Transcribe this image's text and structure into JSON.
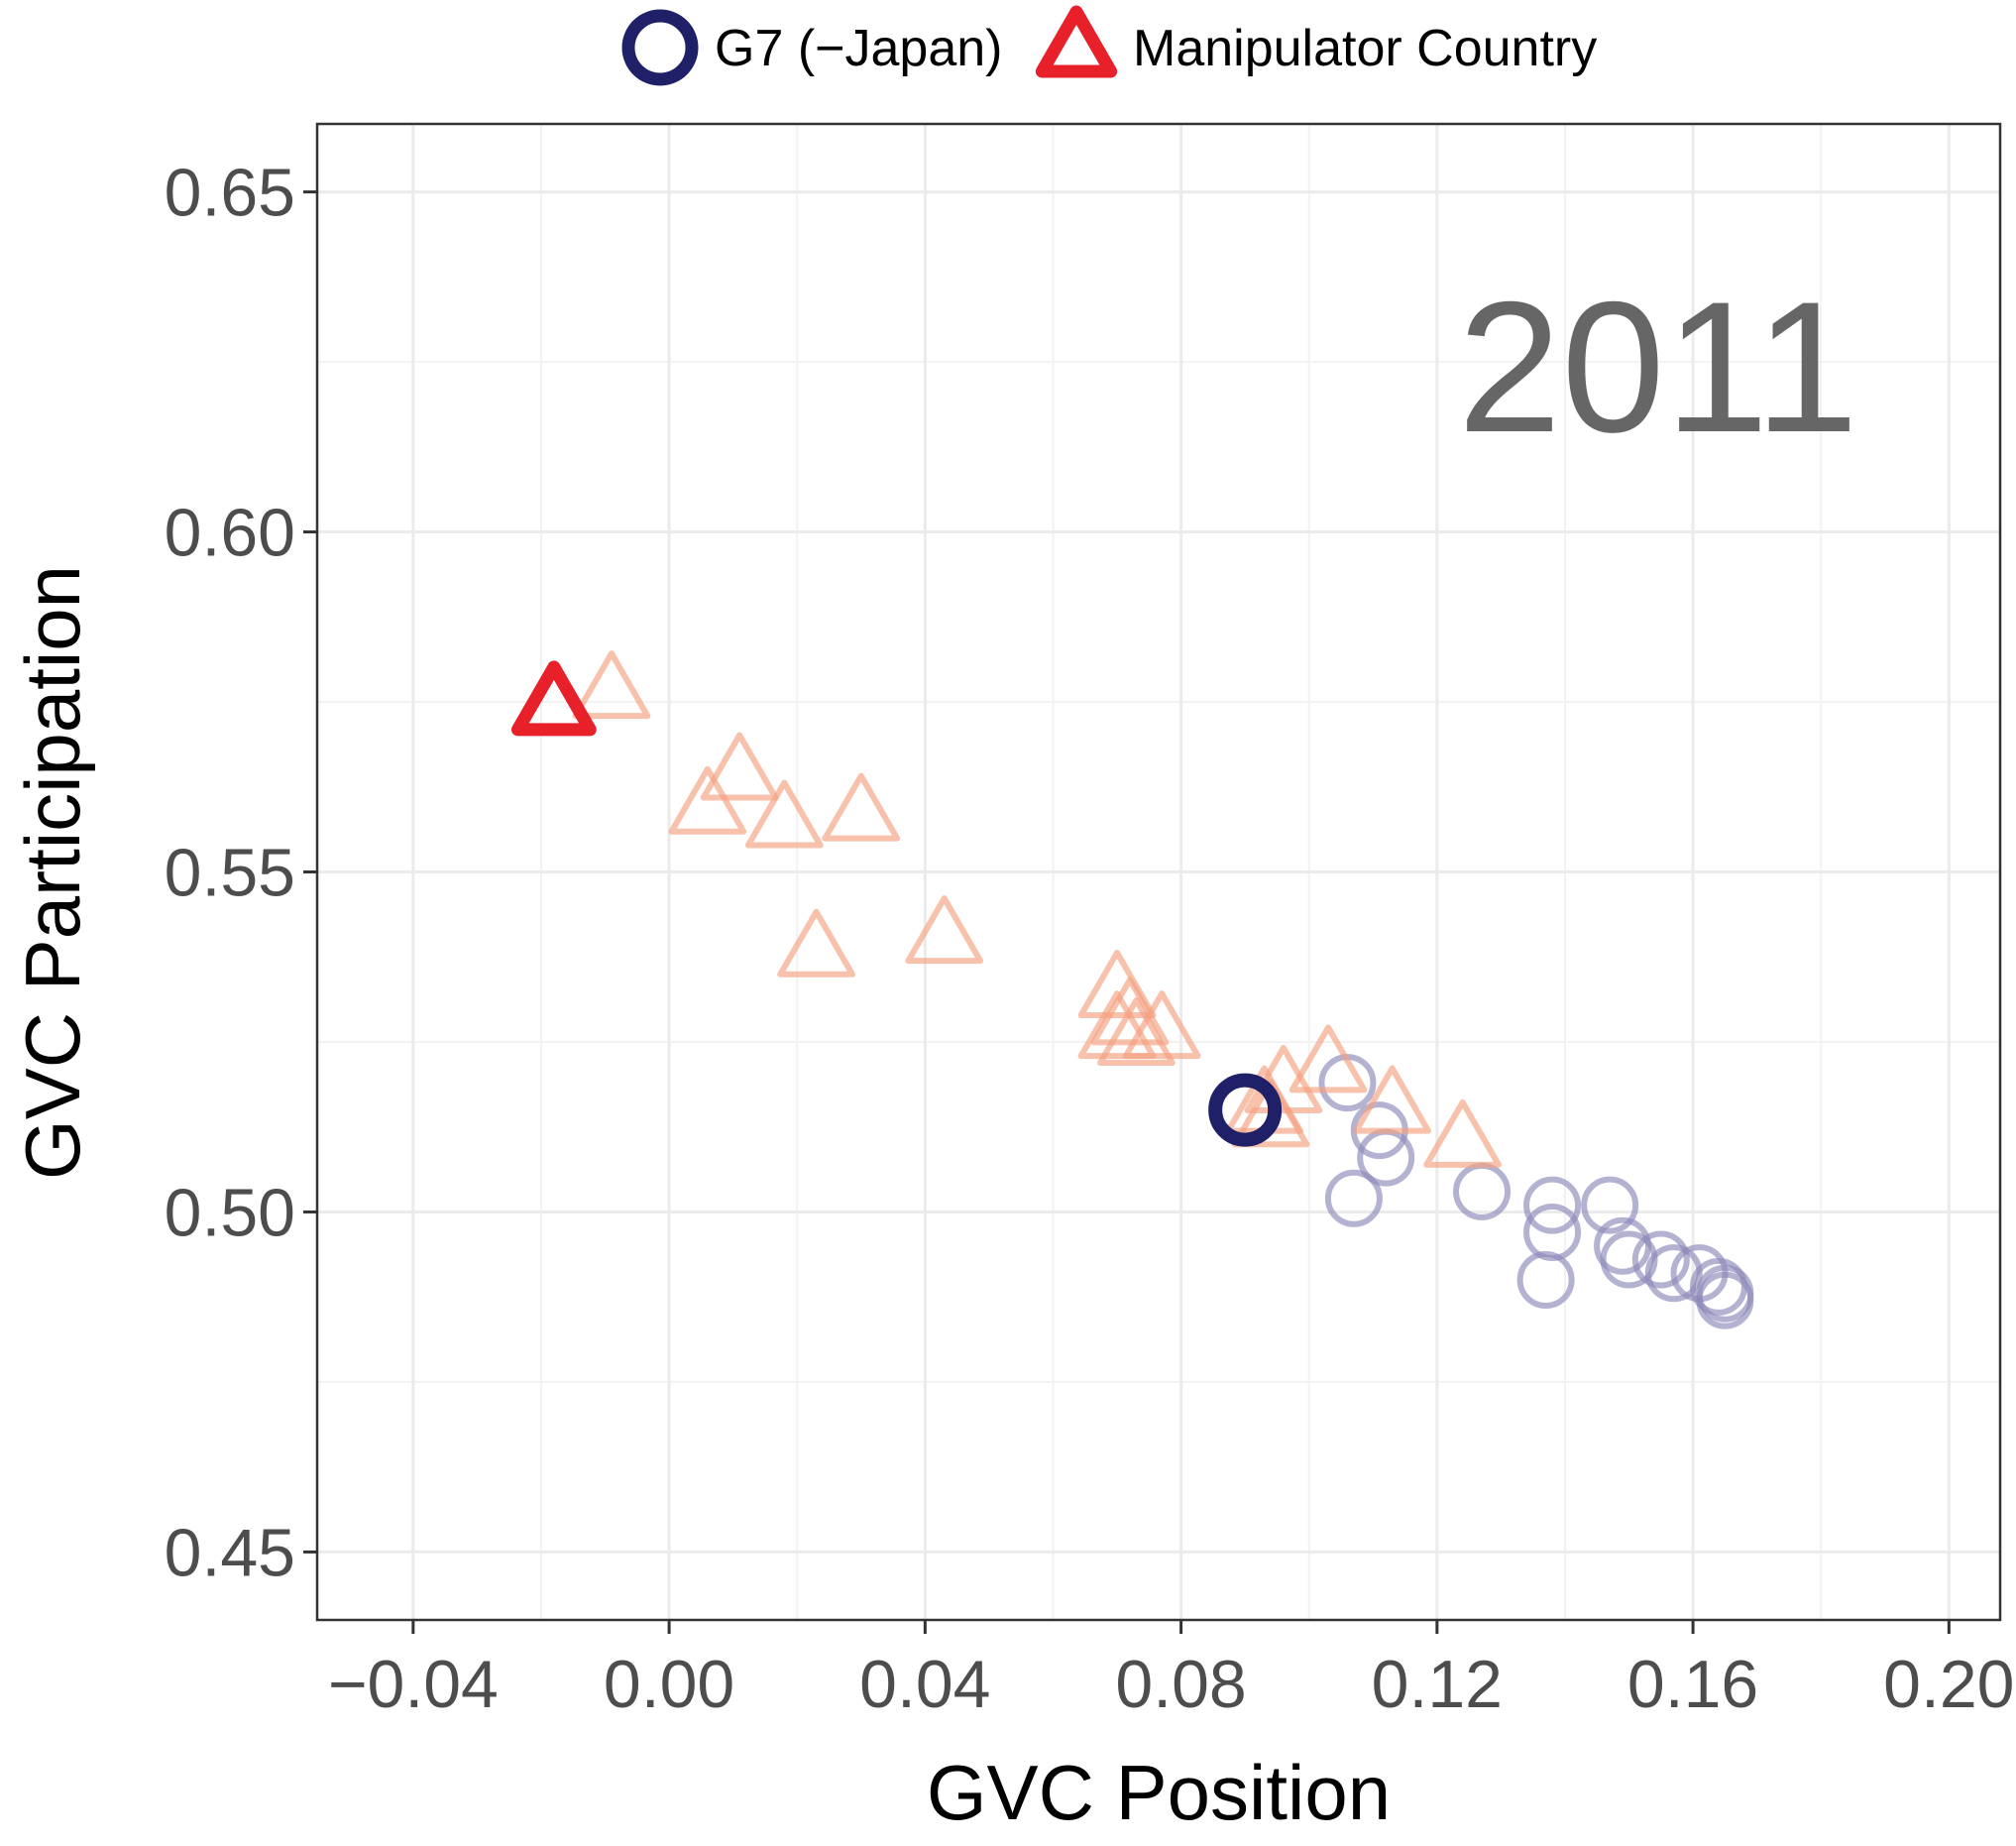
{
  "chart_data": {
    "type": "scatter",
    "xlabel": "GVC Position",
    "ylabel": "GVC Participation",
    "annotation": "2011",
    "xlim": [
      -0.055,
      0.208
    ],
    "ylim": [
      0.44,
      0.66
    ],
    "xticks": [
      -0.04,
      0.0,
      0.04,
      0.08,
      0.12,
      0.16,
      0.2
    ],
    "xtick_labels": [
      "−0.04",
      "0.00",
      "0.04",
      "0.08",
      "0.12",
      "0.16",
      "0.20"
    ],
    "yticks": [
      0.45,
      0.5,
      0.55,
      0.6,
      0.65
    ],
    "ytick_labels": [
      "0.45",
      "0.50",
      "0.55",
      "0.60",
      "0.65"
    ],
    "grid": true,
    "legend": {
      "position": "top",
      "entries": [
        {
          "label": "G7 (−Japan)",
          "shape": "circle",
          "color": "#1f2068"
        },
        {
          "label": "Manipulator Country",
          "shape": "triangle",
          "color": "#e8202a"
        }
      ]
    },
    "series": [
      {
        "name": "G7 (−Japan)",
        "shape": "circle",
        "color": "#1f2068",
        "faded_color": "#8c89b8",
        "highlight": {
          "x": 0.09,
          "y": 0.515
        },
        "points": [
          {
            "x": 0.106,
            "y": 0.519
          },
          {
            "x": 0.111,
            "y": 0.512
          },
          {
            "x": 0.112,
            "y": 0.508
          },
          {
            "x": 0.107,
            "y": 0.502
          },
          {
            "x": 0.127,
            "y": 0.503
          },
          {
            "x": 0.138,
            "y": 0.501
          },
          {
            "x": 0.138,
            "y": 0.497
          },
          {
            "x": 0.137,
            "y": 0.49
          },
          {
            "x": 0.147,
            "y": 0.501
          },
          {
            "x": 0.149,
            "y": 0.495
          },
          {
            "x": 0.15,
            "y": 0.493
          },
          {
            "x": 0.155,
            "y": 0.493
          },
          {
            "x": 0.157,
            "y": 0.491
          },
          {
            "x": 0.161,
            "y": 0.491
          },
          {
            "x": 0.164,
            "y": 0.489
          },
          {
            "x": 0.165,
            "y": 0.488
          },
          {
            "x": 0.165,
            "y": 0.487
          }
        ]
      },
      {
        "name": "Manipulator Country",
        "shape": "triangle",
        "color": "#e8202a",
        "faded_color": "#f4a080",
        "highlight": {
          "x": -0.018,
          "y": 0.574
        },
        "points": [
          {
            "x": -0.009,
            "y": 0.576
          },
          {
            "x": 0.011,
            "y": 0.564
          },
          {
            "x": 0.006,
            "y": 0.559
          },
          {
            "x": 0.018,
            "y": 0.557
          },
          {
            "x": 0.03,
            "y": 0.558
          },
          {
            "x": 0.023,
            "y": 0.538
          },
          {
            "x": 0.043,
            "y": 0.54
          },
          {
            "x": 0.07,
            "y": 0.532
          },
          {
            "x": 0.072,
            "y": 0.528
          },
          {
            "x": 0.07,
            "y": 0.526
          },
          {
            "x": 0.073,
            "y": 0.525
          },
          {
            "x": 0.077,
            "y": 0.526
          },
          {
            "x": 0.096,
            "y": 0.518
          },
          {
            "x": 0.093,
            "y": 0.515
          },
          {
            "x": 0.094,
            "y": 0.513
          },
          {
            "x": 0.103,
            "y": 0.521
          },
          {
            "x": 0.113,
            "y": 0.515
          },
          {
            "x": 0.124,
            "y": 0.51
          }
        ]
      }
    ]
  }
}
